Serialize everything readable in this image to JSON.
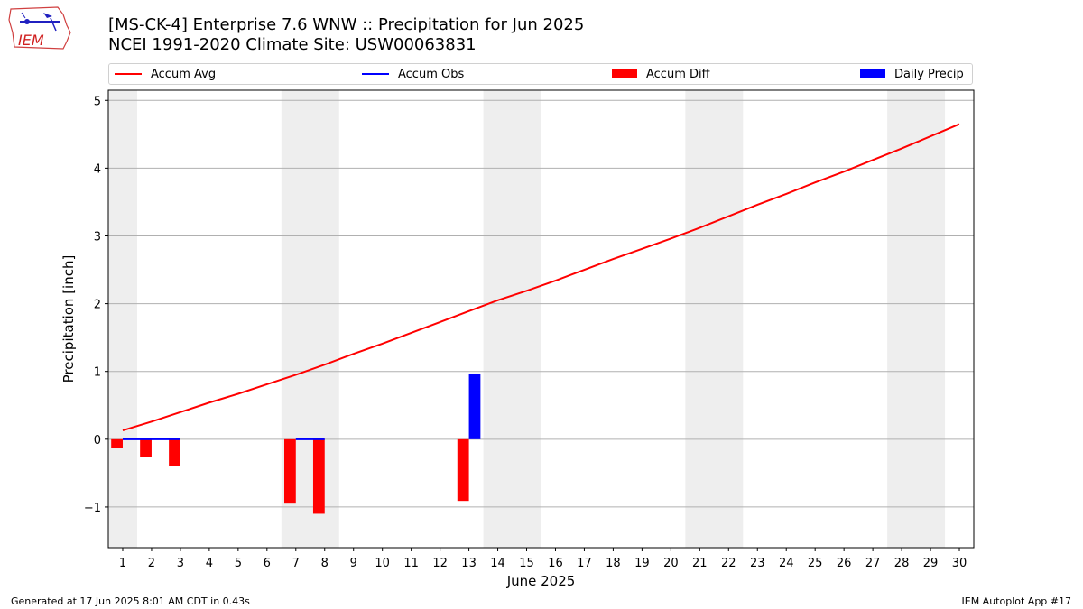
{
  "header": {
    "title_line1": "[MS-CK-4] Enterprise 7.6 WNW :: Precipitation for Jun 2025",
    "title_line2": "NCEI 1991-2020 Climate Site: USW00063831",
    "logo_text": "IEM",
    "logo_icon": "iem-weather-station-logo"
  },
  "legend": {
    "items": [
      {
        "label": "Accum Avg",
        "kind": "line",
        "color": "#ff0000"
      },
      {
        "label": "Accum Obs",
        "kind": "line",
        "color": "#0000ff"
      },
      {
        "label": "Accum Diff",
        "kind": "bar",
        "color": "#ff0000"
      },
      {
        "label": "Daily Precip",
        "kind": "bar",
        "color": "#0000ff"
      }
    ],
    "placement": "top"
  },
  "footer": {
    "left": "Generated at 17 Jun 2025 8:01 AM CDT in 0.43s",
    "right": "IEM Autoplot App #17"
  },
  "chart_data": {
    "type": "bar",
    "xlabel": "June 2025",
    "ylabel": "Precipitation [inch]",
    "x": [
      1,
      2,
      3,
      4,
      5,
      6,
      7,
      8,
      9,
      10,
      11,
      12,
      13,
      14,
      15,
      16,
      17,
      18,
      19,
      20,
      21,
      22,
      23,
      24,
      25,
      26,
      27,
      28,
      29,
      30
    ],
    "xlim": [
      0.5,
      30.5
    ],
    "ylim": [
      -1.6,
      5.15
    ],
    "yticks": [
      -1,
      0,
      1,
      2,
      3,
      4,
      5
    ],
    "grid": "horizontal",
    "weekend_shading": [
      [
        0.5,
        1.5
      ],
      [
        6.5,
        8.5
      ],
      [
        13.5,
        15.5
      ],
      [
        20.5,
        22.5
      ],
      [
        27.5,
        29.5
      ]
    ],
    "colors": {
      "avg": "#ff0000",
      "obs": "#0000ff",
      "diff": "#ff0000",
      "daily": "#0000ff",
      "weekend": "#eeeeee",
      "grid": "#b0b0b0"
    },
    "series": [
      {
        "name": "Accum Avg",
        "kind": "line",
        "values": [
          0.13,
          0.26,
          0.4,
          0.54,
          0.67,
          0.81,
          0.95,
          1.1,
          1.26,
          1.41,
          1.57,
          1.73,
          1.89,
          2.05,
          2.19,
          2.34,
          2.5,
          2.66,
          2.81,
          2.96,
          3.12,
          3.29,
          3.46,
          3.62,
          3.79,
          3.95,
          4.12,
          4.29,
          4.47,
          4.65
        ]
      },
      {
        "name": "Accum Obs",
        "kind": "line",
        "values": [
          0,
          0,
          0,
          null,
          null,
          null,
          0,
          0,
          null,
          null,
          null,
          null,
          null,
          null,
          null,
          null,
          null,
          null,
          null,
          null,
          null,
          null,
          null,
          null,
          null,
          null,
          null,
          null,
          null,
          null
        ]
      },
      {
        "name": "Accum Diff",
        "kind": "bar",
        "values": [
          -0.13,
          -0.26,
          -0.4,
          null,
          null,
          null,
          -0.95,
          -1.1,
          null,
          null,
          null,
          null,
          -0.91,
          null,
          null,
          null,
          null,
          null,
          null,
          null,
          null,
          null,
          null,
          null,
          null,
          null,
          null,
          null,
          null,
          null
        ]
      },
      {
        "name": "Daily Precip",
        "kind": "bar",
        "values": [
          0,
          0,
          0,
          null,
          null,
          null,
          0,
          0,
          null,
          null,
          null,
          null,
          0.97,
          null,
          null,
          null,
          null,
          null,
          null,
          null,
          null,
          null,
          null,
          null,
          null,
          null,
          null,
          null,
          null,
          null
        ]
      }
    ]
  }
}
